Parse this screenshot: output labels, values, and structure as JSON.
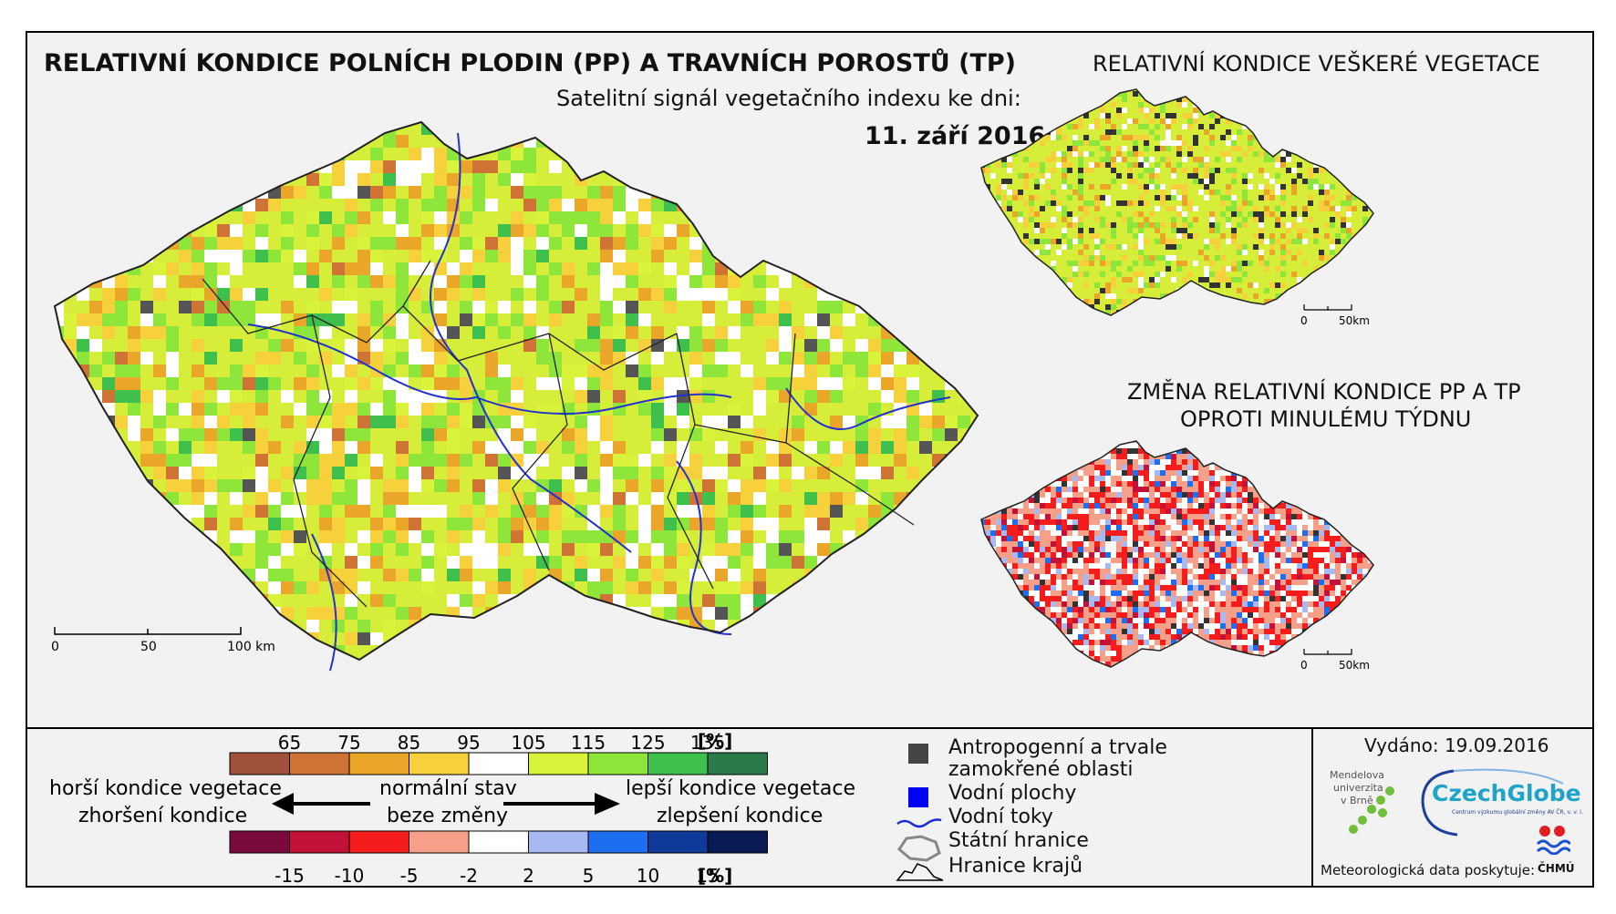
{
  "main_title": "RELATIVNÍ KONDICE POLNÍCH PLODIN (PP) A TRAVNÍCH POROSTŮ (TP)",
  "subtitle": "Satelitní signál vegetačního indexu ke dni:",
  "date": "11. září 2016",
  "right_top_title": "RELATIVNÍ KONDICE VEŠKERÉ VEGETACE",
  "right_bottom_title_line1": "ZMĚNA RELATIVNÍ KONDICE PP A TP",
  "right_bottom_title_line2": "OPROTI MINULÉMU TÝDNU",
  "main_scale": {
    "labels": [
      "0",
      "50",
      "100 km"
    ]
  },
  "small_scale": {
    "labels": [
      "0",
      "50km"
    ]
  },
  "condition_legend": {
    "unit": "[%]",
    "ticks": [
      "65",
      "75",
      "85",
      "95",
      "105",
      "115",
      "125",
      "135"
    ],
    "colors": [
      "#a0513a",
      "#cf7434",
      "#e9a628",
      "#f7d13c",
      "#ffffff",
      "#d9f23a",
      "#8fe63a",
      "#3fbf4c",
      "#2a7a4a"
    ]
  },
  "change_legend": {
    "unit": "[%]",
    "ticks": [
      "-15",
      "-10",
      "-5",
      "-2",
      "2",
      "5",
      "10",
      "15"
    ],
    "colors": [
      "#7a0a3c",
      "#c3123a",
      "#f51c1c",
      "#f6a08a",
      "#ffffff",
      "#a8b8f0",
      "#1e6ef0",
      "#103a9a",
      "#0a1a55"
    ]
  },
  "arrows": {
    "left_top": "horší kondice vegetace",
    "left_bottom": "zhoršení kondice",
    "center_top": "normální stav",
    "center_bottom": "beze změny",
    "right_top": "lepší kondice vegetace",
    "right_bottom": "zlepšení kondice"
  },
  "map_legend": [
    {
      "symbol": "square-dark",
      "label_line1": "Antropogenní a trvale",
      "label_line2": "zamokřené oblasti"
    },
    {
      "symbol": "square-blue",
      "label_line1": "Vodní plochy"
    },
    {
      "symbol": "line-blue",
      "label_line1": "Vodní toky"
    },
    {
      "symbol": "border-state",
      "label_line1": "Státní hranice"
    },
    {
      "symbol": "border-region",
      "label_line1": "Hranice krajů"
    }
  ],
  "issued": "Vydáno: 19.09.2016",
  "logos": {
    "mendel_line1": "Mendelova",
    "mendel_line2": "univerzita",
    "mendel_line3": "v Brně",
    "czechglobe": "CzechGlobe",
    "czechglobe_sub": "Centrum výzkumu globální změny AV ČR, v. v. i.",
    "chmu": "ČHMÚ"
  },
  "meteo_credit": "Meteorologická data poskytuje:"
}
